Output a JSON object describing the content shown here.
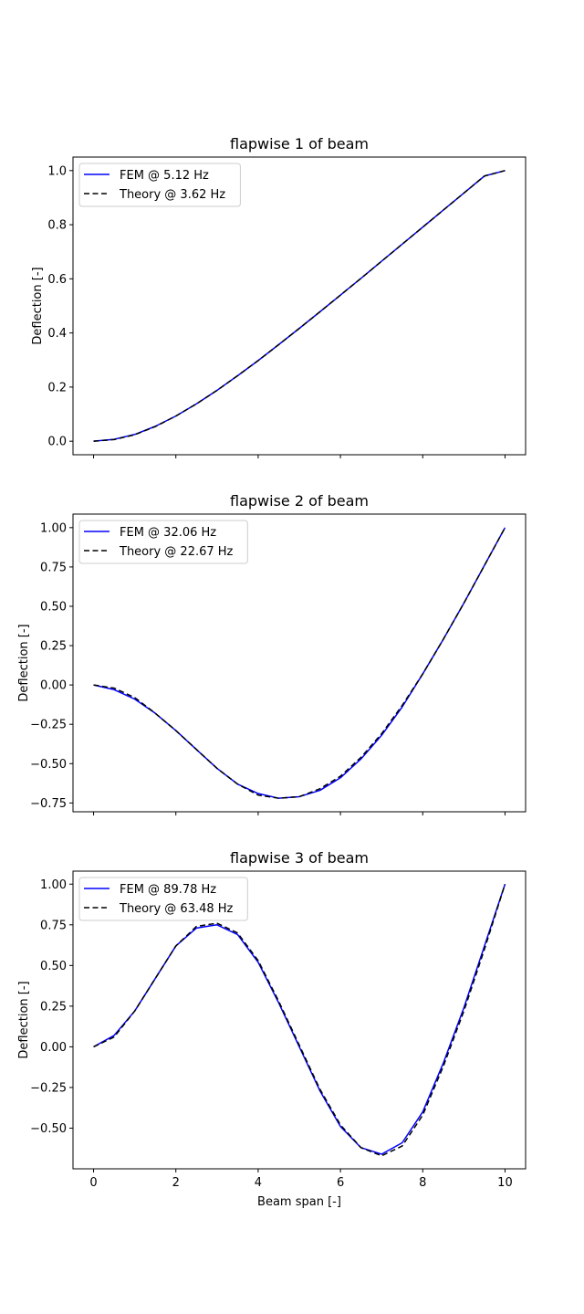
{
  "colors": {
    "fem": "#0000ff",
    "theory": "#000000",
    "axes": "#000000",
    "legend_border": "#cccccc"
  },
  "chart_data": [
    {
      "type": "line",
      "title": "flapwise 1 of beam",
      "xlabel": "",
      "ylabel": "Deflection [-]",
      "xlim": [
        -0.5,
        10.5
      ],
      "ylim": [
        -0.05,
        1.05
      ],
      "xticks": [
        0,
        2,
        4,
        6,
        8,
        10
      ],
      "xtick_labels_visible": false,
      "yticks": [
        0.0,
        0.2,
        0.4,
        0.6,
        0.8,
        1.0
      ],
      "ytick_labels": [
        "0.0",
        "0.2",
        "0.4",
        "0.6",
        "0.8",
        "1.0"
      ],
      "grid": false,
      "legend": "upper-left",
      "x": [
        0,
        0.5,
        1,
        1.5,
        2,
        2.5,
        3,
        3.5,
        4,
        4.5,
        5,
        5.5,
        6,
        6.5,
        7,
        7.5,
        8,
        8.5,
        9,
        9.5,
        10
      ],
      "series": [
        {
          "name": "FEM @ 5.12 Hz",
          "style": "solid",
          "values": [
            0.0,
            0.007,
            0.025,
            0.055,
            0.093,
            0.138,
            0.188,
            0.242,
            0.298,
            0.357,
            0.417,
            0.478,
            0.54,
            0.602,
            0.665,
            0.728,
            0.791,
            0.854,
            0.917,
            0.98,
            1.0
          ]
        },
        {
          "name": "Theory @ 3.62 Hz",
          "style": "dashed",
          "values": [
            0.0,
            0.006,
            0.024,
            0.054,
            0.093,
            0.138,
            0.188,
            0.242,
            0.298,
            0.357,
            0.417,
            0.478,
            0.54,
            0.602,
            0.665,
            0.728,
            0.791,
            0.854,
            0.917,
            0.98,
            1.0
          ]
        }
      ]
    },
    {
      "type": "line",
      "title": "flapwise 2 of beam",
      "xlabel": "",
      "ylabel": "Deflection [-]",
      "xlim": [
        -0.5,
        10.5
      ],
      "ylim": [
        -0.806,
        1.086
      ],
      "xticks": [
        0,
        2,
        4,
        6,
        8,
        10
      ],
      "xtick_labels_visible": false,
      "yticks": [
        -0.75,
        -0.5,
        -0.25,
        0.0,
        0.25,
        0.5,
        0.75,
        1.0
      ],
      "ytick_labels": [
        "−0.75",
        "−0.50",
        "−0.25",
        "0.00",
        "0.25",
        "0.50",
        "0.75",
        "1.00"
      ],
      "grid": false,
      "legend": "upper-left",
      "x": [
        0,
        0.5,
        1,
        1.5,
        2,
        2.5,
        3,
        3.5,
        4,
        4.5,
        5,
        5.5,
        6,
        6.5,
        7,
        7.5,
        8,
        8.5,
        9,
        9.5,
        10
      ],
      "series": [
        {
          "name": "FEM @ 32.06 Hz",
          "style": "solid",
          "values": [
            0.0,
            -0.03,
            -0.09,
            -0.18,
            -0.29,
            -0.41,
            -0.53,
            -0.63,
            -0.69,
            -0.72,
            -0.71,
            -0.67,
            -0.59,
            -0.47,
            -0.32,
            -0.14,
            0.07,
            0.29,
            0.52,
            0.76,
            1.0
          ]
        },
        {
          "name": "Theory @ 22.67 Hz",
          "style": "dashed",
          "values": [
            0.0,
            -0.02,
            -0.08,
            -0.18,
            -0.29,
            -0.41,
            -0.53,
            -0.63,
            -0.7,
            -0.72,
            -0.71,
            -0.66,
            -0.58,
            -0.46,
            -0.31,
            -0.13,
            0.07,
            0.29,
            0.52,
            0.76,
            1.0
          ]
        }
      ]
    },
    {
      "type": "line",
      "title": "flapwise 3 of beam",
      "xlabel": "Beam span [-]",
      "ylabel": "Deflection [-]",
      "xlim": [
        -0.5,
        10.5
      ],
      "ylim": [
        -0.75,
        1.08
      ],
      "xticks": [
        0,
        2,
        4,
        6,
        8,
        10
      ],
      "xtick_labels_visible": true,
      "xtick_labels": [
        "0",
        "2",
        "4",
        "6",
        "8",
        "10"
      ],
      "yticks": [
        -0.5,
        -0.25,
        0.0,
        0.25,
        0.5,
        0.75,
        1.0
      ],
      "ytick_labels": [
        "−0.50",
        "−0.25",
        "0.00",
        "0.25",
        "0.50",
        "0.75",
        "1.00"
      ],
      "grid": false,
      "legend": "upper-left",
      "x": [
        0,
        0.5,
        1,
        1.5,
        2,
        2.5,
        3,
        3.5,
        4,
        4.5,
        5,
        5.5,
        6,
        6.5,
        7,
        7.5,
        8,
        8.5,
        9,
        9.5,
        10
      ],
      "series": [
        {
          "name": "FEM @ 89.78 Hz",
          "style": "solid",
          "values": [
            0.0,
            0.07,
            0.22,
            0.42,
            0.62,
            0.73,
            0.75,
            0.69,
            0.52,
            0.27,
            0.0,
            -0.27,
            -0.49,
            -0.62,
            -0.66,
            -0.59,
            -0.4,
            -0.1,
            0.24,
            0.62,
            1.0
          ]
        },
        {
          "name": "Theory @ 63.48 Hz",
          "style": "dashed",
          "values": [
            0.0,
            0.06,
            0.22,
            0.42,
            0.62,
            0.74,
            0.76,
            0.7,
            0.53,
            0.28,
            0.01,
            -0.26,
            -0.48,
            -0.62,
            -0.67,
            -0.61,
            -0.42,
            -0.12,
            0.22,
            0.6,
            1.0
          ]
        }
      ]
    }
  ]
}
